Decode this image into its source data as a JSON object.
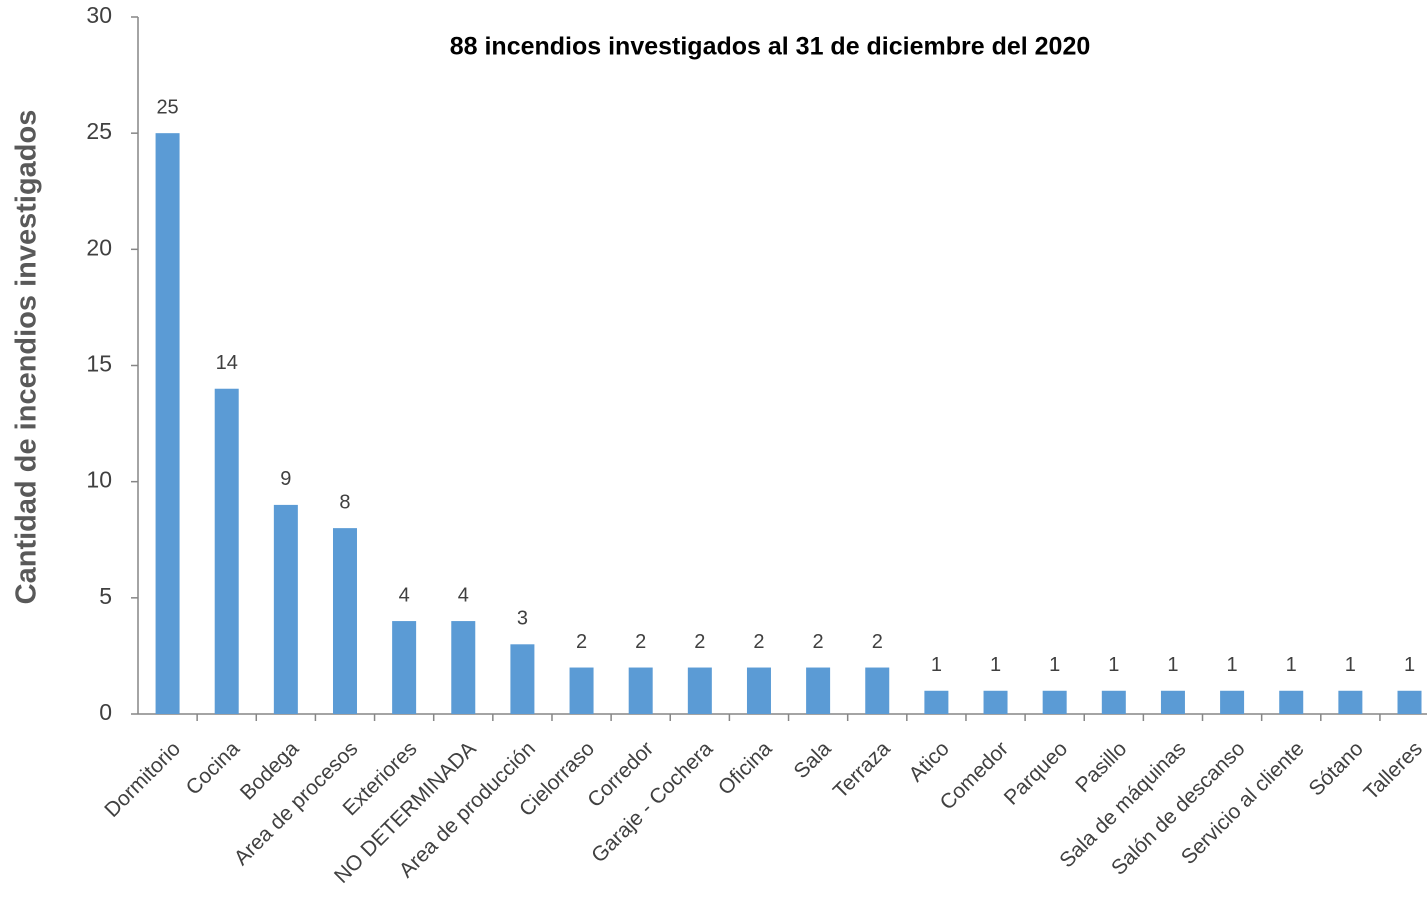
{
  "chart_data": {
    "type": "bar",
    "subtitle": "88 incendios investigados al 31 de diciembre del 2020",
    "ylabel": "Cantidad de incendios investigados",
    "categories": [
      "Dormitorio",
      "Cocina",
      "Bodega",
      "Area de procesos",
      "Exteriores",
      "NO DETERMINADA",
      "Area de producción",
      "Cielorraso",
      "Corredor",
      "Garaje - Cochera",
      "Oficina",
      "Sala",
      "Terraza",
      "Atico",
      "Comedor",
      "Parqueo",
      "Pasillo",
      "Sala de máquinas",
      "Salón de descanso",
      "Servicio al cliente",
      "Sótano",
      "Talleres"
    ],
    "values": [
      25,
      14,
      9,
      8,
      4,
      4,
      3,
      2,
      2,
      2,
      2,
      2,
      2,
      1,
      1,
      1,
      1,
      1,
      1,
      1,
      1,
      1
    ],
    "color": "#5b9bd5",
    "ylim": [
      0,
      30
    ],
    "yticks": [
      0,
      5,
      10,
      15,
      20,
      25,
      30
    ],
    "grid": false
  }
}
